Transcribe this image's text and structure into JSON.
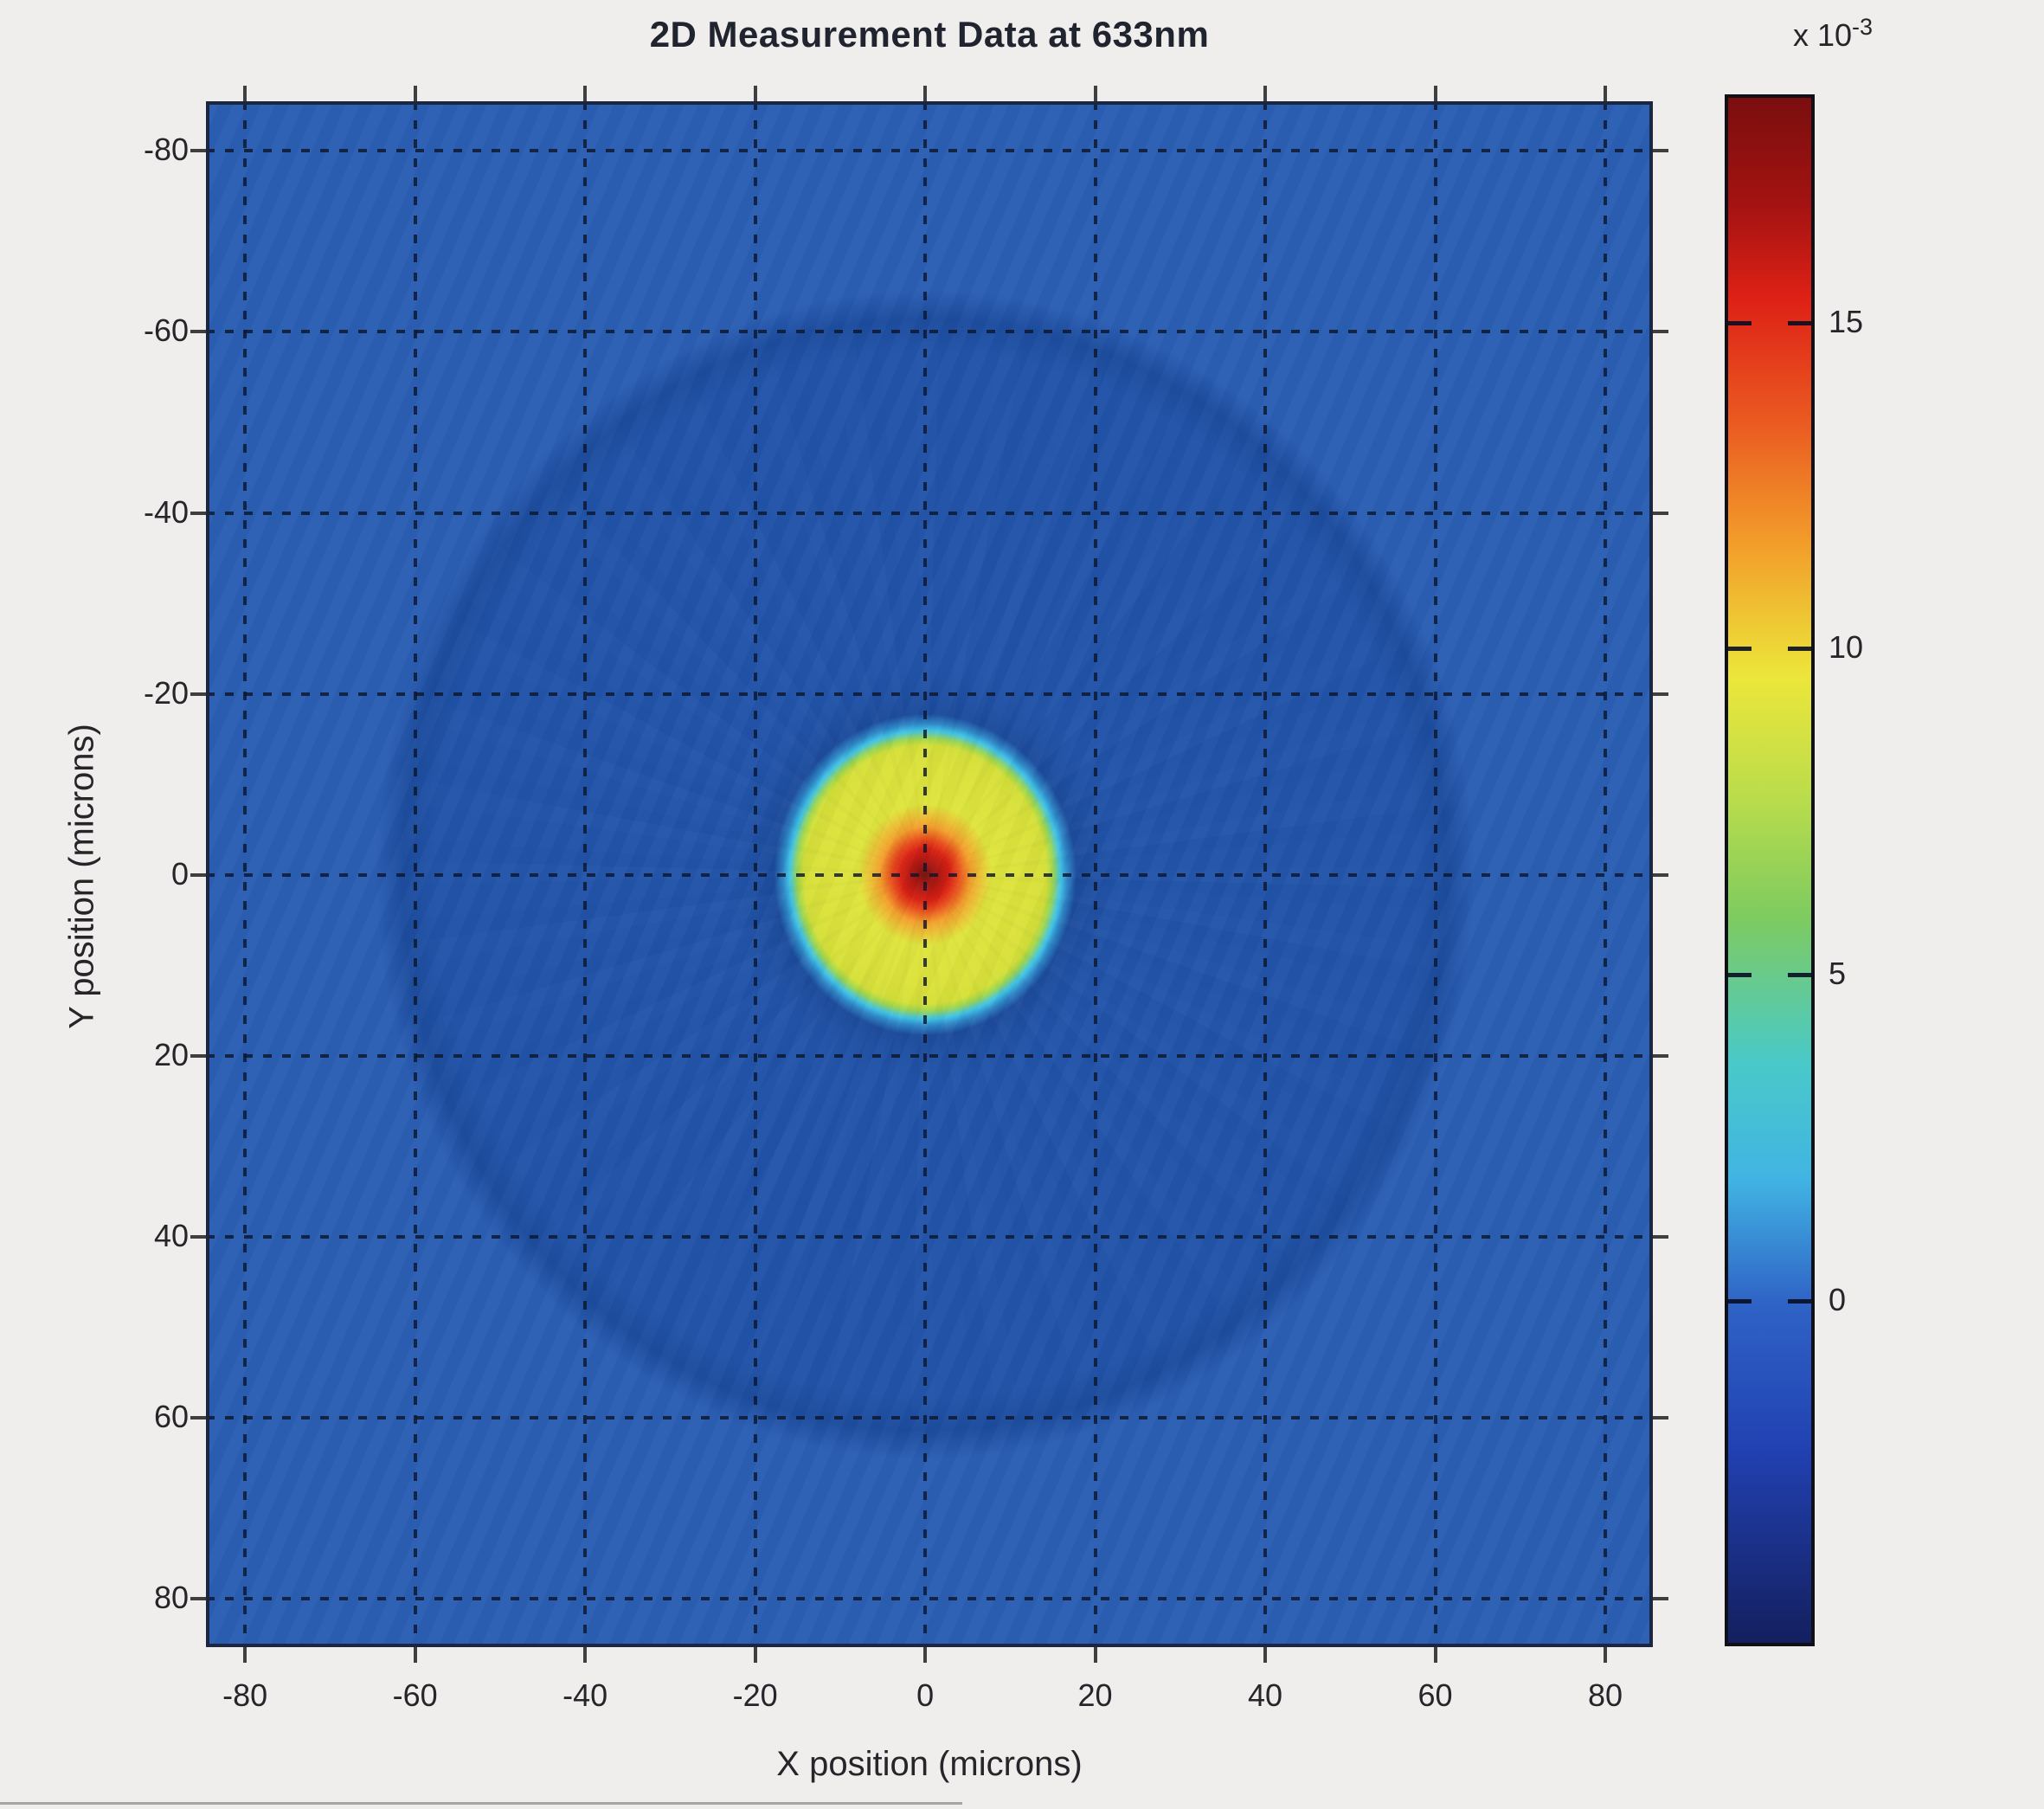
{
  "figure": {
    "background_color": "#efeeec"
  },
  "chart_data": {
    "type": "heatmap",
    "title": "2D Measurement Data at 633nm",
    "xlabel": "X position (microns)",
    "ylabel": "Y position (microns)",
    "xlim": [
      -84.6,
      85.6
    ],
    "ylim": [
      -85.5,
      85.4
    ],
    "y_axis_direction": "down",
    "grid": true,
    "grid_style": "dashed",
    "xticks": [
      -80,
      -60,
      -40,
      -20,
      0,
      20,
      40,
      60,
      80
    ],
    "yticks": [
      -80,
      -60,
      -40,
      -20,
      0,
      20,
      40,
      60,
      80
    ],
    "colorbar": {
      "scale_prefix": "x 10",
      "scale_exponent": "-3",
      "tick_labels": [
        15,
        10,
        5,
        0
      ],
      "value_top": 18.5,
      "value_bottom": -5.3,
      "colormap": "jet",
      "gradient_stops": [
        {
          "pct": 0,
          "color": "#7a0e0e"
        },
        {
          "pct": 7,
          "color": "#a41311"
        },
        {
          "pct": 13,
          "color": "#de2116"
        },
        {
          "pct": 21,
          "color": "#ea5a21"
        },
        {
          "pct": 29,
          "color": "#f29e2b"
        },
        {
          "pct": 37.5,
          "color": "#ece63a"
        },
        {
          "pct": 45,
          "color": "#bcdd4b"
        },
        {
          "pct": 53,
          "color": "#7ecb60"
        },
        {
          "pct": 62.5,
          "color": "#49c9c9"
        },
        {
          "pct": 70,
          "color": "#41b4e3"
        },
        {
          "pct": 78,
          "color": "#2f63c6"
        },
        {
          "pct": 87.5,
          "color": "#2141b2"
        },
        {
          "pct": 100,
          "color": "#141f5e"
        }
      ]
    },
    "features": [
      {
        "name": "background-field",
        "color": "#2b5eb3",
        "value_x1e3": 0.5
      },
      {
        "name": "outer-diffraction-disc",
        "center_x_microns": 0,
        "center_y_microns": 0,
        "radius_microns": 64,
        "color": "#2254a9",
        "rim_color": "#1e4d9e",
        "value_x1e3": 0.2
      },
      {
        "name": "bright-mode-disc",
        "center_x_microns": 0,
        "center_y_microns": 0,
        "radius_microns": 15.2,
        "color": "#dce23a",
        "bright_color": "#e4ea40",
        "rim_color": "#3fc4e8",
        "halo_color": "#1d4c9c",
        "value_x1e3": 10
      },
      {
        "name": "core-hotspot",
        "center_x_microns": 0,
        "center_y_microns": 0,
        "radius_microns": 5.6,
        "colors_inner_to_outer": [
          "#6f100a",
          "#9c1410",
          "#d92013",
          "#e84c1c",
          "#f4a02c"
        ],
        "value_x1e3": 18.5
      }
    ]
  }
}
